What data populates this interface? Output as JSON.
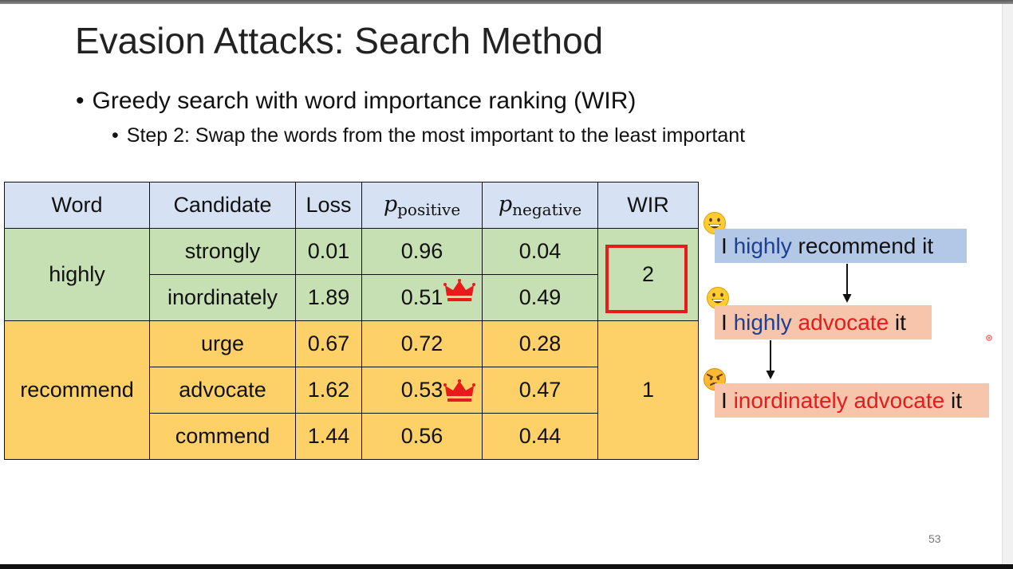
{
  "slide": {
    "title": "Evasion Attacks: Search Method",
    "bullet": "Greedy search with word importance ranking (WIR)",
    "sub_bullet": "Step 2: Swap the words from the most important to the least important",
    "page_number": "53"
  },
  "table": {
    "headers": {
      "word": "Word",
      "candidate": "Candidate",
      "loss": "Loss",
      "p_symbol": "p",
      "p_positive_sub": "positive",
      "p_negative_sub": "negative",
      "wir": "WIR"
    },
    "groups": [
      {
        "word": "highly",
        "wir": "2",
        "rows": [
          {
            "candidate": "strongly",
            "loss": "0.01",
            "p_positive": "0.96",
            "p_negative": "0.04"
          },
          {
            "candidate": "inordinately",
            "loss": "1.89",
            "p_positive": "0.51",
            "p_negative": "0.49"
          }
        ]
      },
      {
        "word": "recommend",
        "wir": "1",
        "rows": [
          {
            "candidate": "urge",
            "loss": "0.67",
            "p_positive": "0.72",
            "p_negative": "0.28"
          },
          {
            "candidate": "advocate",
            "loss": "1.62",
            "p_positive": "0.53",
            "p_negative": "0.47"
          },
          {
            "candidate": "commend",
            "loss": "1.44",
            "p_positive": "0.56",
            "p_negative": "0.44"
          }
        ]
      }
    ]
  },
  "sentences": [
    {
      "parts": [
        "I ",
        "highly",
        " recommend it"
      ]
    },
    {
      "parts": [
        "I ",
        "highly",
        " ",
        "advocate",
        " it"
      ]
    },
    {
      "parts": [
        "I ",
        "inordinately advocate",
        " it"
      ]
    }
  ],
  "colors": {
    "header_bg": "#d6e2f3",
    "group1_bg": "#c6dfb3",
    "group2_bg": "#fdd167",
    "highlight_red": "#e81b1b",
    "word_blue": "#1f3f8f"
  },
  "icons": [
    "crown-icon",
    "grinning-face-icon",
    "angry-face-icon",
    "down-arrow-icon"
  ]
}
